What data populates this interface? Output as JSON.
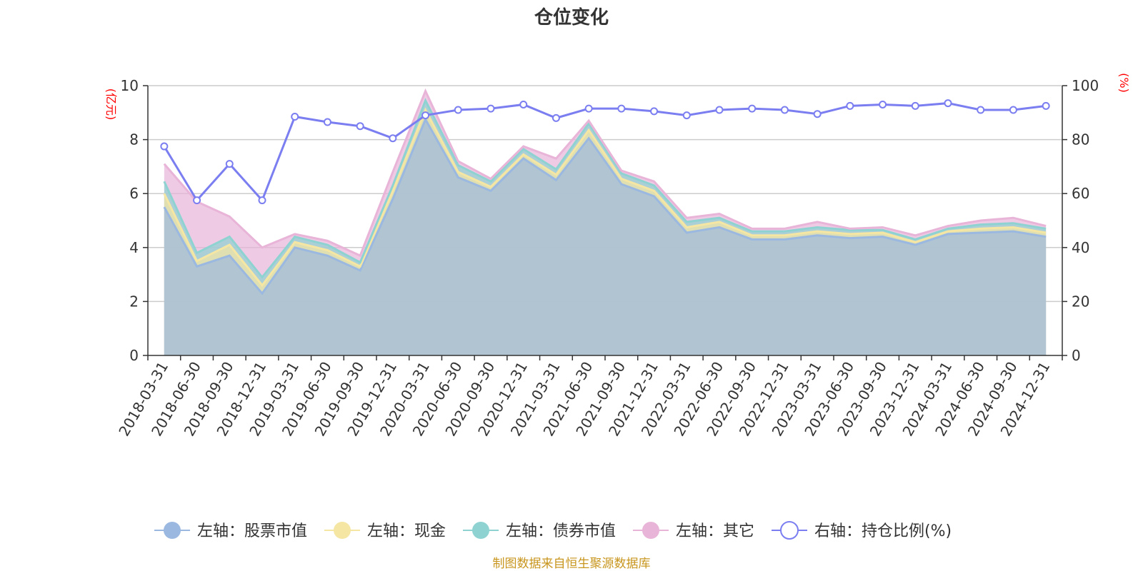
{
  "chart_data": {
    "type": "area",
    "stacked": true,
    "title": "仓位变化",
    "source": "制图数据来自恒生聚源数据库",
    "categories": [
      "2018-03-31",
      "2018-06-30",
      "2018-09-30",
      "2018-12-31",
      "2019-03-31",
      "2019-06-30",
      "2019-09-30",
      "2019-12-31",
      "2020-03-31",
      "2020-06-30",
      "2020-09-30",
      "2020-12-31",
      "2021-03-31",
      "2021-06-30",
      "2021-09-30",
      "2021-12-31",
      "2022-03-31",
      "2022-06-30",
      "2022-09-30",
      "2022-12-31",
      "2023-03-31",
      "2023-06-30",
      "2023-09-30",
      "2023-12-31",
      "2024-03-31",
      "2024-06-30",
      "2024-09-30",
      "2024-12-31"
    ],
    "left_axis": {
      "label": "(亿元)",
      "min": 0,
      "max": 10,
      "ticks": [
        0,
        2,
        4,
        6,
        8,
        10
      ]
    },
    "right_axis": {
      "label": "(%)",
      "min": 0,
      "max": 100,
      "ticks": [
        0,
        20,
        40,
        60,
        80,
        100
      ]
    },
    "series": [
      {
        "name": "左轴：股票市值",
        "axis": "left",
        "color": "#9bb8e0",
        "values": [
          5.5,
          3.3,
          3.7,
          2.3,
          4.0,
          3.7,
          3.15,
          5.8,
          8.75,
          6.6,
          6.1,
          7.3,
          6.5,
          8.05,
          6.35,
          5.9,
          4.55,
          4.75,
          4.3,
          4.3,
          4.45,
          4.35,
          4.4,
          4.1,
          4.5,
          4.55,
          4.6,
          4.4
        ]
      },
      {
        "name": "左轴：现金",
        "axis": "left",
        "color": "#f5e6a3",
        "values": [
          0.5,
          0.2,
          0.4,
          0.3,
          0.2,
          0.2,
          0.15,
          0.3,
          0.35,
          0.2,
          0.15,
          0.15,
          0.2,
          0.3,
          0.2,
          0.2,
          0.2,
          0.2,
          0.15,
          0.15,
          0.15,
          0.15,
          0.15,
          0.1,
          0.1,
          0.15,
          0.15,
          0.15
        ]
      },
      {
        "name": "左轴：债券市值",
        "axis": "left",
        "color": "#8fd2d2",
        "values": [
          0.45,
          0.3,
          0.3,
          0.3,
          0.2,
          0.2,
          0.15,
          0.2,
          0.35,
          0.25,
          0.2,
          0.2,
          0.2,
          0.25,
          0.2,
          0.2,
          0.2,
          0.15,
          0.15,
          0.15,
          0.15,
          0.15,
          0.1,
          0.1,
          0.1,
          0.15,
          0.15,
          0.15
        ]
      },
      {
        "name": "左轴：其它",
        "axis": "left",
        "color": "#e8b4d8",
        "values": [
          0.65,
          1.9,
          0.75,
          1.1,
          0.1,
          0.15,
          0.25,
          0.5,
          0.35,
          0.15,
          0.1,
          0.1,
          0.4,
          0.1,
          0.1,
          0.15,
          0.15,
          0.15,
          0.1,
          0.1,
          0.2,
          0.05,
          0.1,
          0.15,
          0.1,
          0.15,
          0.2,
          0.1
        ]
      },
      {
        "name": "右轴：持仓比例(%)",
        "axis": "right",
        "color": "#7b7ef0",
        "values": [
          77.5,
          57.5,
          71.0,
          57.5,
          88.5,
          86.5,
          85.0,
          80.5,
          89.0,
          91.0,
          91.5,
          93.0,
          88.0,
          91.5,
          91.5,
          90.5,
          89.0,
          91.0,
          91.5,
          91.0,
          89.5,
          92.5,
          93.0,
          92.5,
          93.5,
          91.0,
          91.0,
          92.5
        ]
      }
    ]
  }
}
